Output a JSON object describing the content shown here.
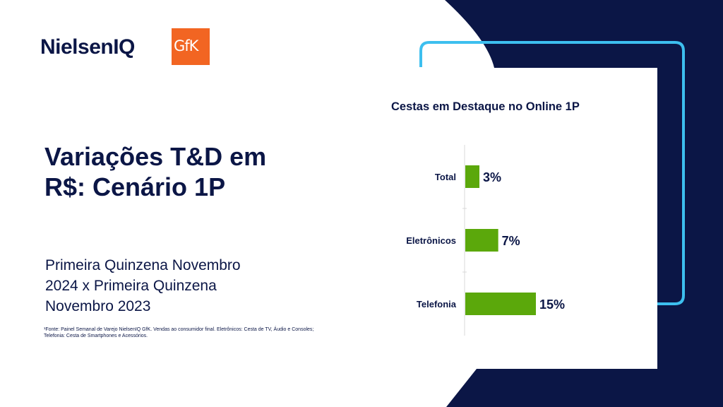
{
  "brand": {
    "logo_text": "NielsenIQ",
    "gfk_logo_text": "GfK"
  },
  "colors": {
    "navy": "#0b1646",
    "accent_border": "#3dbfef",
    "bar": "#5ba80b",
    "gfk_orange": "#f26522"
  },
  "slide": {
    "title": "Variações T&D em R$: Cenário 1P",
    "subtitle": "Primeira Quinzena Novembro 2024 x Primeira Quinzena Novembro 2023",
    "footnote": "¹Fonte: Painel Semanal de Varejo NielsenIQ GfK. Vendas ao consumidor final. Eletrônicos: Cesta de TV, Áudio e Consoles; Telefonia: Cesta de Smartphones e Acessórios."
  },
  "chart_data": {
    "type": "bar",
    "orientation": "horizontal",
    "title": "Cestas em Destaque no Online 1P",
    "categories": [
      "Total",
      "Eletrônicos",
      "Telefonia"
    ],
    "values": [
      3,
      7,
      15
    ],
    "value_labels": [
      "3%",
      "7%",
      "15%"
    ],
    "unit": "%",
    "xlim": [
      0,
      15
    ],
    "grid": false,
    "legend": "none",
    "bar_color": "#5ba80b"
  }
}
